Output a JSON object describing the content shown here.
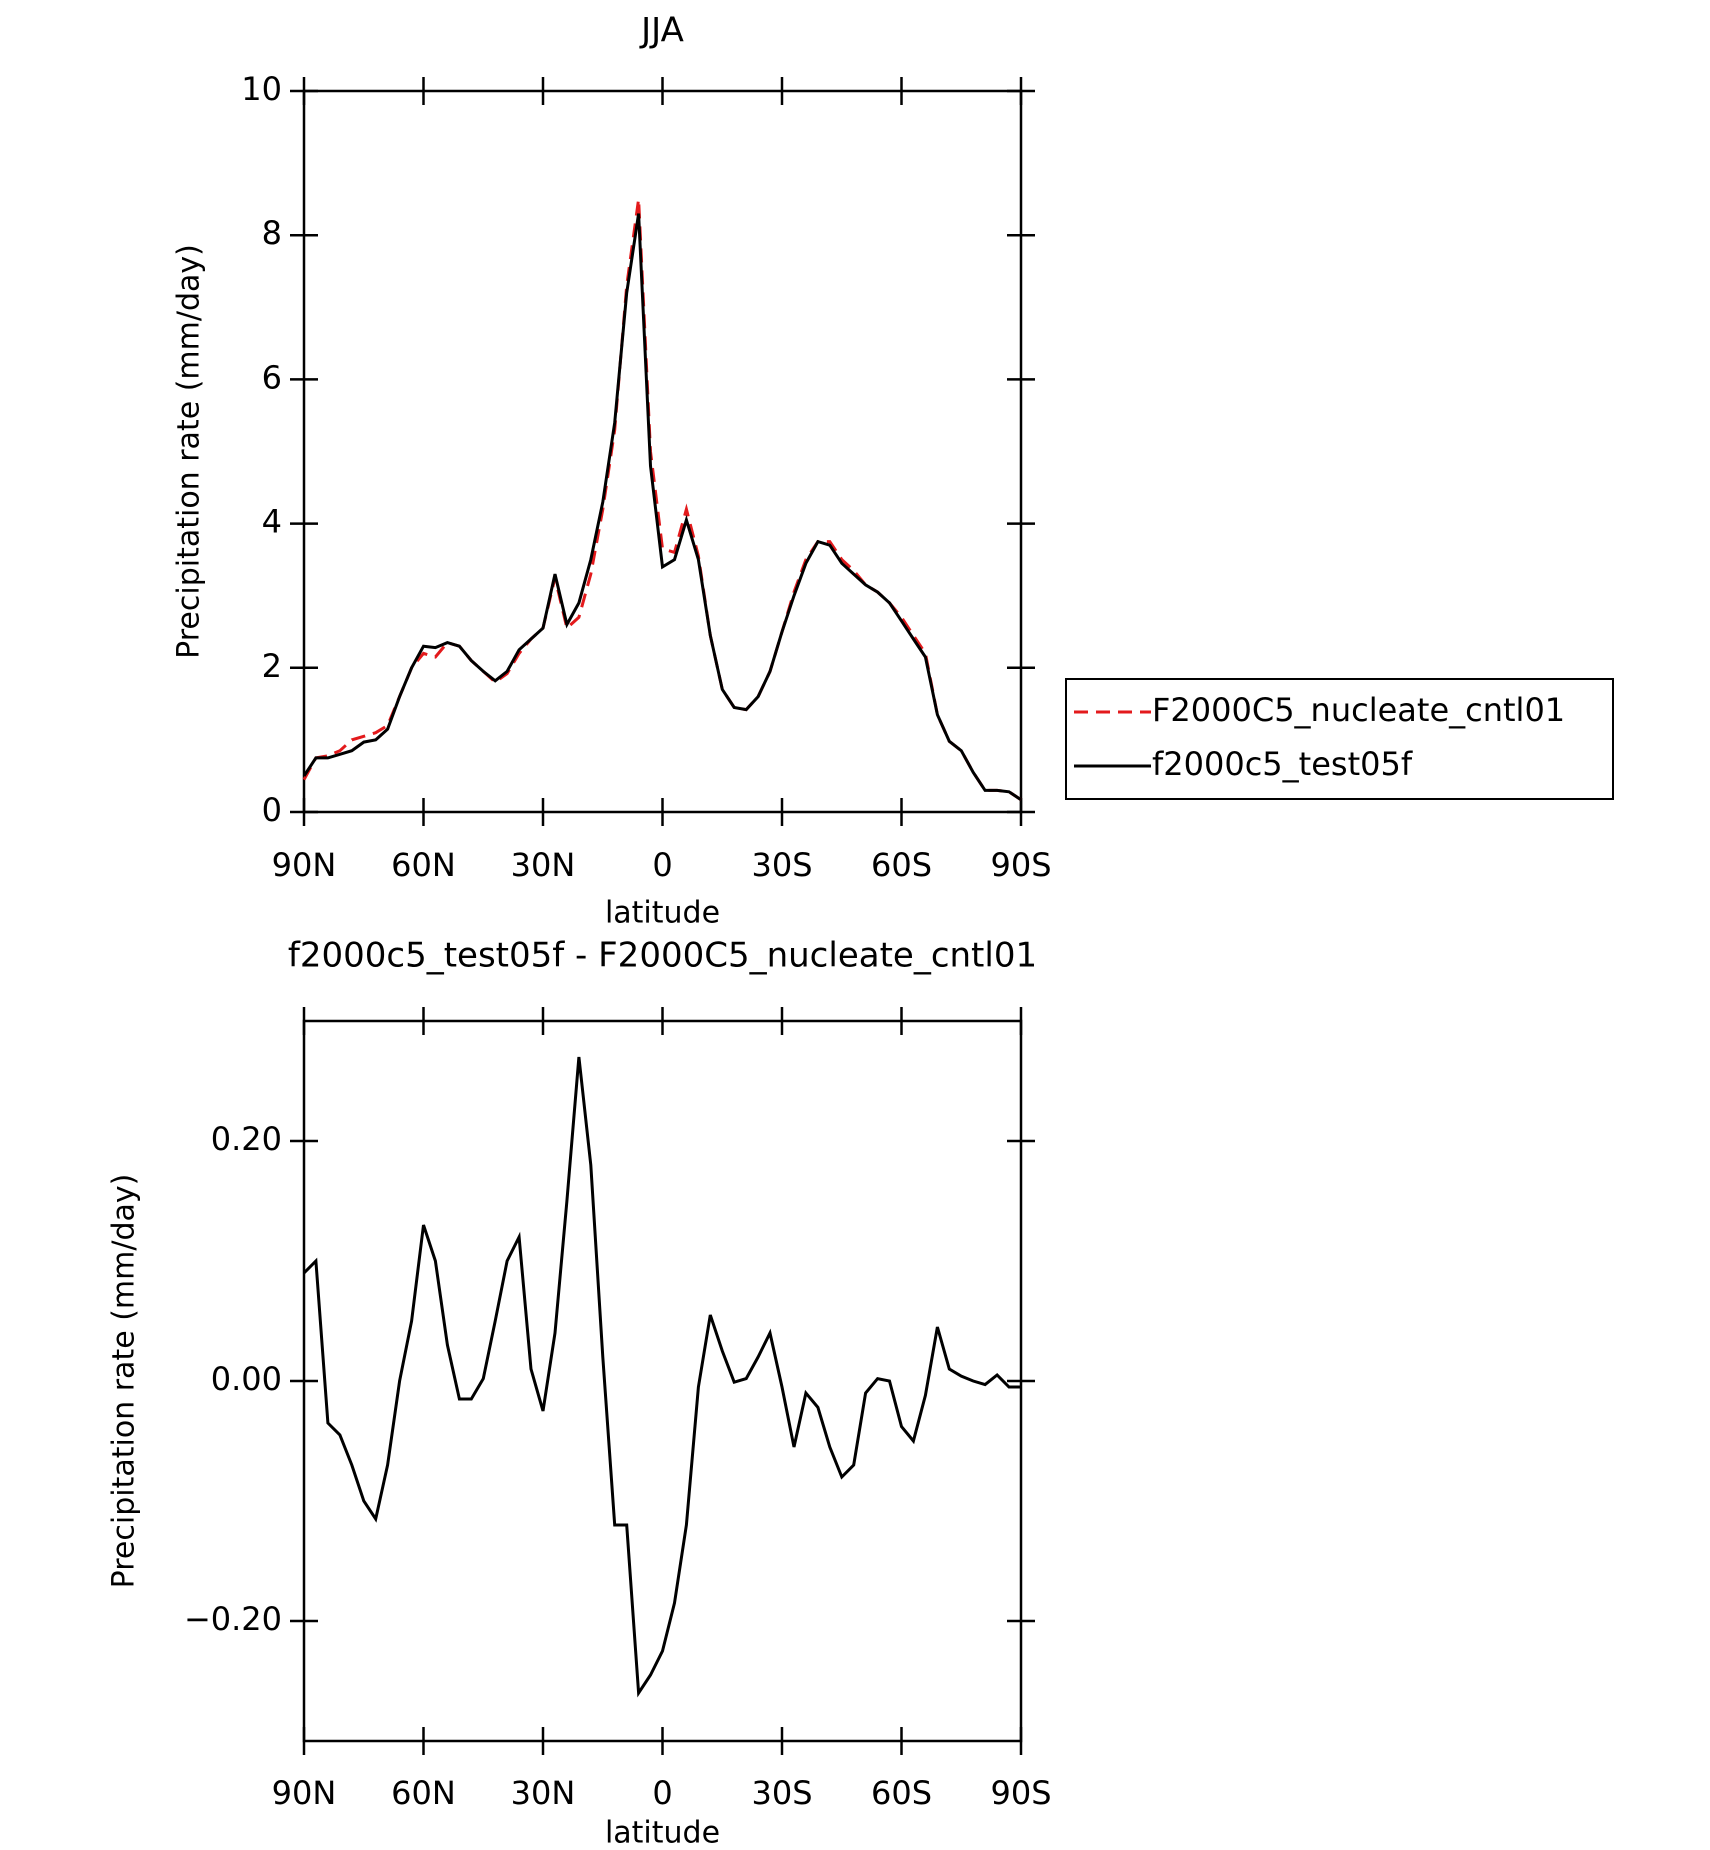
{
  "chart_data": [
    {
      "type": "line",
      "title": "JJA",
      "xlabel": "latitude",
      "ylabel": "Precipitation rate (mm/day)",
      "x": [
        90,
        87,
        84,
        81,
        78,
        75,
        72,
        69,
        66,
        63,
        60,
        57,
        54,
        51,
        48,
        45,
        42,
        39,
        36,
        33,
        30,
        27,
        24,
        21,
        18,
        15,
        12,
        9,
        6,
        3,
        0,
        -3,
        -6,
        -9,
        -12,
        -15,
        -18,
        -21,
        -24,
        -27,
        -30,
        -33,
        -36,
        -39,
        -42,
        -45,
        -48,
        -51,
        -54,
        -57,
        -60,
        -63,
        -66,
        -69,
        -72,
        -75,
        -78,
        -81,
        -84,
        -87,
        -90
      ],
      "xlim": [
        90,
        -90
      ],
      "xticks": [
        {
          "value": 90,
          "label": "90N"
        },
        {
          "value": 60,
          "label": "60N"
        },
        {
          "value": 30,
          "label": "30N"
        },
        0,
        {
          "value": -30,
          "label": "30S"
        },
        {
          "value": -60,
          "label": "60S"
        },
        {
          "value": -90,
          "label": "90S"
        }
      ],
      "ylim": [
        0,
        10
      ],
      "yticks": [
        0,
        2,
        4,
        6,
        8,
        10
      ],
      "legend": "outside-right",
      "series": [
        {
          "name": "F2000C5_nucleate_cntl01",
          "color": "#e31a1c",
          "dashed": true,
          "values": [
            0.45,
            0.75,
            0.78,
            0.85,
            1.0,
            1.05,
            1.1,
            1.2,
            1.6,
            2.0,
            2.2,
            2.15,
            2.35,
            2.3,
            2.1,
            1.95,
            1.8,
            1.92,
            2.2,
            2.4,
            2.55,
            3.25,
            2.55,
            2.7,
            3.3,
            4.2,
            5.3,
            7.3,
            8.5,
            5.0,
            3.65,
            3.6,
            4.2,
            3.55,
            2.45,
            1.7,
            1.45,
            1.42,
            1.6,
            1.95,
            2.5,
            3.05,
            3.5,
            3.75,
            3.75,
            3.5,
            3.35,
            3.15,
            3.05,
            2.9,
            2.7,
            2.45,
            2.2,
            1.35,
            0.98,
            0.85,
            0.55,
            0.3,
            0.3,
            0.28,
            0.17
          ]
        },
        {
          "name": "f2000c5_test05f",
          "color": "#000000",
          "dashed": false,
          "values": [
            0.5,
            0.75,
            0.75,
            0.8,
            0.85,
            0.97,
            1.0,
            1.15,
            1.6,
            2.0,
            2.3,
            2.28,
            2.35,
            2.3,
            2.1,
            1.95,
            1.82,
            1.95,
            2.25,
            2.4,
            2.55,
            3.3,
            2.6,
            2.9,
            3.5,
            4.3,
            5.4,
            7.2,
            8.3,
            4.8,
            3.4,
            3.5,
            4.05,
            3.5,
            2.45,
            1.7,
            1.45,
            1.42,
            1.6,
            1.95,
            2.5,
            3.0,
            3.45,
            3.75,
            3.7,
            3.45,
            3.3,
            3.15,
            3.05,
            2.9,
            2.65,
            2.4,
            2.15,
            1.35,
            0.98,
            0.85,
            0.55,
            0.3,
            0.3,
            0.28,
            0.17
          ]
        }
      ]
    },
    {
      "type": "line",
      "title": "f2000c5_test05f - F2000C5_nucleate_cntl01",
      "xlabel": "latitude",
      "ylabel": "Precipitation rate (mm/day)",
      "x": [
        90,
        87,
        84,
        81,
        78,
        75,
        72,
        69,
        66,
        63,
        60,
        57,
        54,
        51,
        48,
        45,
        42,
        39,
        36,
        33,
        30,
        27,
        24,
        21,
        18,
        15,
        12,
        9,
        6,
        3,
        0,
        -3,
        -6,
        -9,
        -12,
        -15,
        -18,
        -21,
        -24,
        -27,
        -30,
        -33,
        -36,
        -39,
        -42,
        -45,
        -48,
        -51,
        -54,
        -57,
        -60,
        -63,
        -66,
        -69,
        -72,
        -75,
        -78,
        -81,
        -84,
        -87,
        -90
      ],
      "xlim": [
        90,
        -90
      ],
      "xticks": [
        {
          "value": 90,
          "label": "90N"
        },
        {
          "value": 60,
          "label": "60N"
        },
        {
          "value": 30,
          "label": "30N"
        },
        0,
        {
          "value": -30,
          "label": "30S"
        },
        {
          "value": -60,
          "label": "60S"
        },
        {
          "value": -90,
          "label": "90S"
        }
      ],
      "ylim": [
        -0.3,
        0.3
      ],
      "yticks": [
        {
          "value": -0.2,
          "label": "−0.20"
        },
        {
          "value": 0,
          "label": "0.00"
        },
        {
          "value": 0.2,
          "label": "0.20"
        }
      ],
      "series": [
        {
          "color": "#000000",
          "dashed": false,
          "values": [
            0.09,
            0.1,
            -0.035,
            -0.045,
            -0.07,
            -0.1,
            -0.115,
            -0.07,
            0.0,
            0.05,
            0.13,
            0.1,
            0.03,
            -0.015,
            -0.015,
            0.002,
            0.05,
            0.1,
            0.12,
            0.01,
            -0.025,
            0.04,
            0.15,
            0.27,
            0.18,
            0.02,
            -0.12,
            -0.12,
            -0.26,
            -0.245,
            -0.225,
            -0.185,
            -0.12,
            -0.005,
            0.055,
            0.025,
            -0.001,
            0.002,
            0.02,
            0.04,
            -0.005,
            -0.055,
            -0.01,
            -0.022,
            -0.055,
            -0.08,
            -0.07,
            -0.01,
            0.002,
            0.0,
            -0.038,
            -0.05,
            -0.012,
            0.045,
            0.01,
            0.004,
            0.0,
            -0.003,
            0.005,
            -0.005,
            -0.005
          ]
        }
      ]
    }
  ]
}
